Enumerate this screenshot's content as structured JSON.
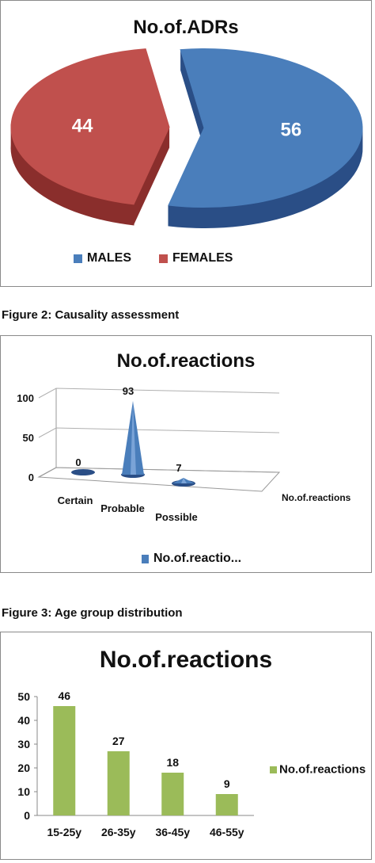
{
  "captions": {
    "fig2": "Figure 2: Causality assessment",
    "fig3": "Figure 3: Age group distribution"
  },
  "colors": {
    "males": "#4A7EBB",
    "females": "#C0504D",
    "green": "#9BBB59"
  },
  "chart_data": [
    {
      "type": "pie",
      "title": "No.of.ADRs",
      "categories": [
        "MALES",
        "FEMALES"
      ],
      "values": [
        56,
        44
      ],
      "legend_position": "bottom",
      "colors": [
        "#4A7EBB",
        "#C0504D"
      ]
    },
    {
      "type": "bar",
      "title": "No.of.reactions",
      "categories": [
        "Certain",
        "Probable",
        "Possible"
      ],
      "series": [
        {
          "name": "No.of.reactions",
          "values": [
            0,
            93,
            7
          ]
        }
      ],
      "series_axis_label": "No.of.reactions",
      "legend_label": "No.of.reactio...",
      "ylim": [
        0,
        100
      ],
      "yticks": [
        0,
        50,
        100
      ],
      "legend_position": "bottom",
      "shape": "cone"
    },
    {
      "type": "bar",
      "title": "No.of.reactions",
      "categories": [
        "15-25y",
        "26-35y",
        "36-45y",
        "46-55y"
      ],
      "series": [
        {
          "name": "No.of.reactions",
          "values": [
            46,
            27,
            18,
            9
          ]
        }
      ],
      "ylim": [
        0,
        50
      ],
      "yticks": [
        0,
        10,
        20,
        30,
        40,
        50
      ],
      "grid": false,
      "legend_position": "right"
    }
  ]
}
